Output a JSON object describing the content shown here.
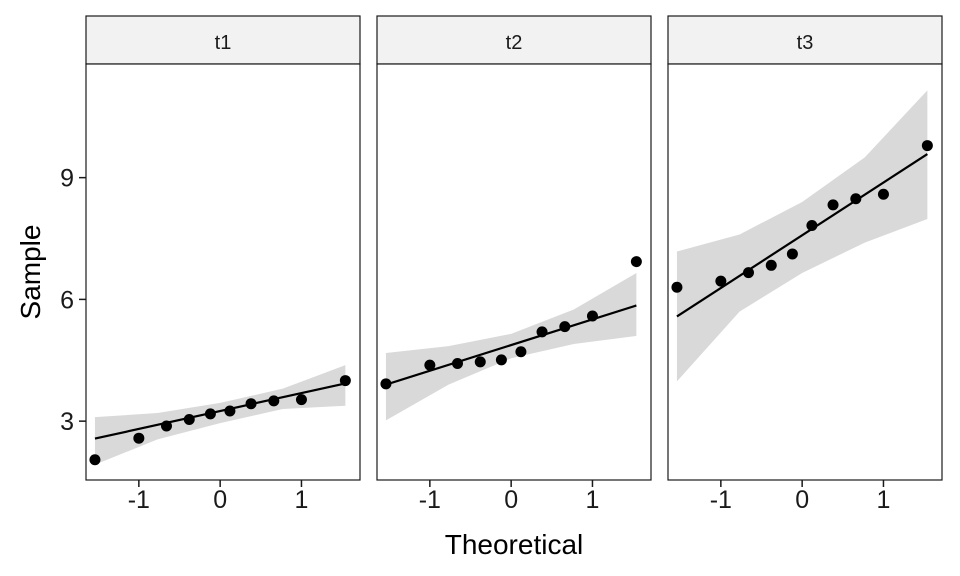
{
  "chart_data": {
    "type": "scatter",
    "kind": "qq-plot-faceted",
    "xlabel": "Theoretical",
    "ylabel": "Sample",
    "xlim": [
      -1.65,
      1.72
    ],
    "ylim": [
      1.55,
      11.8
    ],
    "x_ticks": [
      -1,
      0,
      1
    ],
    "x_tick_labels": [
      "-1",
      "0",
      "1"
    ],
    "y_ticks": [
      3,
      6,
      9
    ],
    "y_tick_labels": [
      "3",
      "6",
      "9"
    ],
    "colors": {
      "points": "#000000",
      "line": "#000000",
      "band": "#d9d9d9",
      "strip": "#f2f2f2"
    },
    "panels": [
      {
        "label": "t1",
        "points": [
          [
            -1.54,
            2.05
          ],
          [
            -1.0,
            2.58
          ],
          [
            -0.66,
            2.88
          ],
          [
            -0.38,
            3.04
          ],
          [
            -0.12,
            3.18
          ],
          [
            0.12,
            3.25
          ],
          [
            0.38,
            3.43
          ],
          [
            0.66,
            3.5
          ],
          [
            1.0,
            3.53
          ],
          [
            1.54,
            4.0
          ]
        ],
        "line": [
          [
            -1.54,
            2.57
          ],
          [
            1.54,
            3.93
          ]
        ],
        "band_upper": [
          [
            -1.54,
            3.1
          ],
          [
            -0.77,
            3.2
          ],
          [
            0.0,
            3.45
          ],
          [
            0.77,
            3.8
          ],
          [
            1.54,
            4.38
          ]
        ],
        "band_lower": [
          [
            -1.54,
            1.93
          ],
          [
            -0.77,
            2.55
          ],
          [
            0.0,
            2.95
          ],
          [
            0.77,
            3.3
          ],
          [
            1.54,
            3.38
          ]
        ]
      },
      {
        "label": "t2",
        "points": [
          [
            -1.54,
            3.92
          ],
          [
            -1.0,
            4.38
          ],
          [
            -0.66,
            4.42
          ],
          [
            -0.38,
            4.46
          ],
          [
            -0.12,
            4.51
          ],
          [
            0.12,
            4.71
          ],
          [
            0.38,
            5.2
          ],
          [
            0.66,
            5.33
          ],
          [
            1.0,
            5.59
          ],
          [
            1.54,
            6.93
          ]
        ],
        "line": [
          [
            -1.54,
            3.9
          ],
          [
            1.54,
            5.85
          ]
        ],
        "band_upper": [
          [
            -1.54,
            4.68
          ],
          [
            -0.77,
            4.85
          ],
          [
            0.0,
            5.15
          ],
          [
            0.77,
            5.75
          ],
          [
            1.54,
            6.65
          ]
        ],
        "band_lower": [
          [
            -1.54,
            3.02
          ],
          [
            -0.77,
            3.9
          ],
          [
            0.0,
            4.55
          ],
          [
            0.77,
            4.9
          ],
          [
            1.54,
            5.1
          ]
        ]
      },
      {
        "label": "t3",
        "points": [
          [
            -1.54,
            6.3
          ],
          [
            -1.0,
            6.45
          ],
          [
            -0.66,
            6.66
          ],
          [
            -0.38,
            6.84
          ],
          [
            -0.12,
            7.12
          ],
          [
            0.12,
            7.82
          ],
          [
            0.38,
            8.33
          ],
          [
            0.66,
            8.48
          ],
          [
            1.0,
            8.59
          ],
          [
            1.54,
            9.79
          ]
        ],
        "line": [
          [
            -1.54,
            5.58
          ],
          [
            1.54,
            9.58
          ]
        ],
        "band_upper": [
          [
            -1.54,
            7.18
          ],
          [
            -0.77,
            7.6
          ],
          [
            0.0,
            8.4
          ],
          [
            0.77,
            9.5
          ],
          [
            1.54,
            11.15
          ]
        ],
        "band_lower": [
          [
            -1.54,
            3.98
          ],
          [
            -0.77,
            5.7
          ],
          [
            0.0,
            6.65
          ],
          [
            0.77,
            7.4
          ],
          [
            1.54,
            7.98
          ]
        ]
      }
    ]
  }
}
